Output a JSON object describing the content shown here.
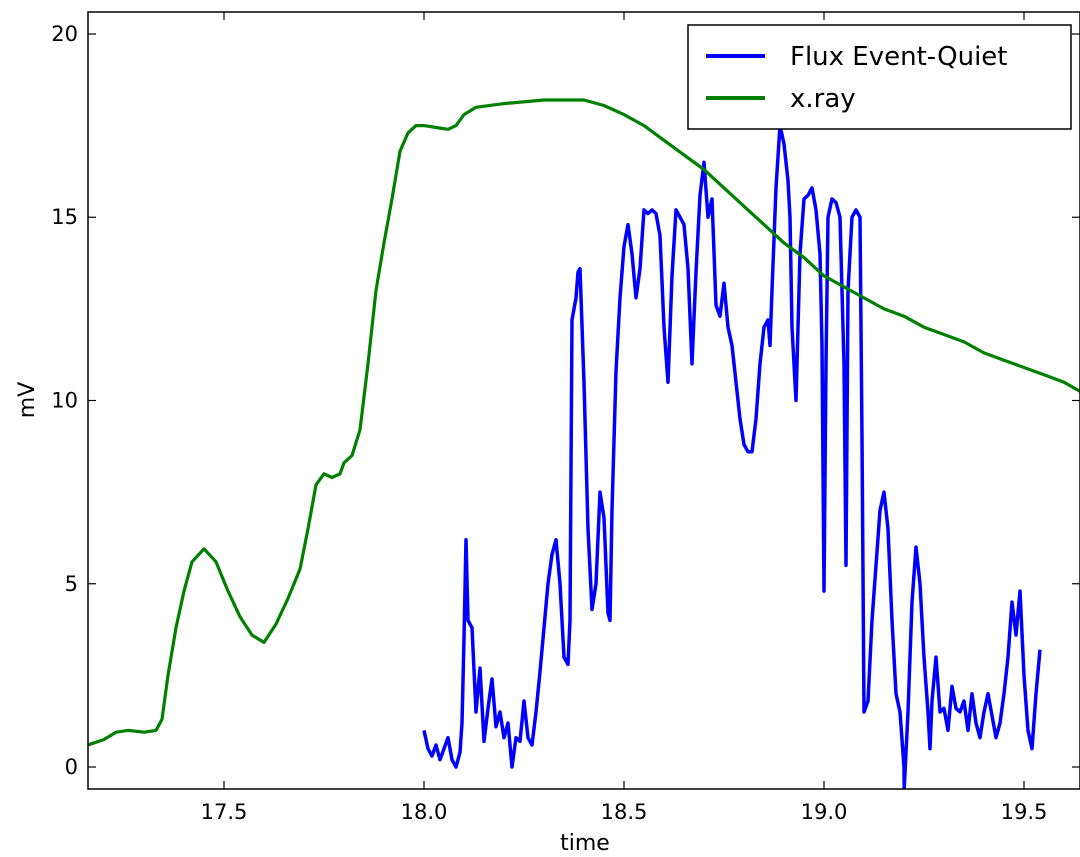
{
  "chart_data": {
    "type": "line",
    "xlabel": "time",
    "ylabel": "mV",
    "xlim": [
      17.16,
      19.64
    ],
    "ylim": [
      -0.6,
      20.6
    ],
    "x_ticks": [
      17.5,
      18.0,
      18.5,
      19.0,
      19.5
    ],
    "x_tick_labels": [
      "17.5",
      "18.0",
      "18.5",
      "19.0",
      "19.5"
    ],
    "y_ticks": [
      0,
      5,
      10,
      15,
      20
    ],
    "y_tick_labels": [
      "0",
      "5",
      "10",
      "15",
      "20"
    ],
    "grid": false,
    "legend_position": "top-right",
    "series": [
      {
        "name": "Flux Event-Quiet",
        "color": "#0000ff",
        "points": [
          [
            18.0,
            1.0
          ],
          [
            18.01,
            0.5
          ],
          [
            18.02,
            0.3
          ],
          [
            18.03,
            0.6
          ],
          [
            18.04,
            0.2
          ],
          [
            18.05,
            0.5
          ],
          [
            18.06,
            0.8
          ],
          [
            18.07,
            0.2
          ],
          [
            18.08,
            0.0
          ],
          [
            18.09,
            0.4
          ],
          [
            18.095,
            1.2
          ],
          [
            18.1,
            3.5
          ],
          [
            18.105,
            6.2
          ],
          [
            18.11,
            4.0
          ],
          [
            18.12,
            3.8
          ],
          [
            18.13,
            1.5
          ],
          [
            18.14,
            2.7
          ],
          [
            18.15,
            0.7
          ],
          [
            18.16,
            1.6
          ],
          [
            18.17,
            2.4
          ],
          [
            18.18,
            1.1
          ],
          [
            18.19,
            1.5
          ],
          [
            18.2,
            0.8
          ],
          [
            18.21,
            1.2
          ],
          [
            18.22,
            0.0
          ],
          [
            18.23,
            0.8
          ],
          [
            18.24,
            0.7
          ],
          [
            18.25,
            1.8
          ],
          [
            18.26,
            0.8
          ],
          [
            18.27,
            0.6
          ],
          [
            18.28,
            1.5
          ],
          [
            18.29,
            2.6
          ],
          [
            18.3,
            3.8
          ],
          [
            18.31,
            5.0
          ],
          [
            18.32,
            5.8
          ],
          [
            18.33,
            6.2
          ],
          [
            18.34,
            5.0
          ],
          [
            18.35,
            3.0
          ],
          [
            18.36,
            2.8
          ],
          [
            18.365,
            4.0
          ],
          [
            18.37,
            12.2
          ],
          [
            18.38,
            12.8
          ],
          [
            18.385,
            13.5
          ],
          [
            18.39,
            13.6
          ],
          [
            18.4,
            10.5
          ],
          [
            18.41,
            6.5
          ],
          [
            18.42,
            4.3
          ],
          [
            18.43,
            5.0
          ],
          [
            18.44,
            7.5
          ],
          [
            18.45,
            6.8
          ],
          [
            18.46,
            4.2
          ],
          [
            18.465,
            4.0
          ],
          [
            18.47,
            7.0
          ],
          [
            18.48,
            10.8
          ],
          [
            18.49,
            12.8
          ],
          [
            18.5,
            14.2
          ],
          [
            18.51,
            14.8
          ],
          [
            18.52,
            14.0
          ],
          [
            18.53,
            12.8
          ],
          [
            18.54,
            13.6
          ],
          [
            18.55,
            15.2
          ],
          [
            18.56,
            15.1
          ],
          [
            18.57,
            15.2
          ],
          [
            18.58,
            15.1
          ],
          [
            18.59,
            14.5
          ],
          [
            18.6,
            12.0
          ],
          [
            18.61,
            10.5
          ],
          [
            18.62,
            13.4
          ],
          [
            18.63,
            15.2
          ],
          [
            18.64,
            15.0
          ],
          [
            18.65,
            14.8
          ],
          [
            18.66,
            13.6
          ],
          [
            18.67,
            11.0
          ],
          [
            18.68,
            13.5
          ],
          [
            18.69,
            15.6
          ],
          [
            18.7,
            16.5
          ],
          [
            18.71,
            15.0
          ],
          [
            18.72,
            15.5
          ],
          [
            18.73,
            12.6
          ],
          [
            18.74,
            12.3
          ],
          [
            18.75,
            13.2
          ],
          [
            18.76,
            12.0
          ],
          [
            18.77,
            11.5
          ],
          [
            18.78,
            10.5
          ],
          [
            18.79,
            9.5
          ],
          [
            18.8,
            8.8
          ],
          [
            18.81,
            8.6
          ],
          [
            18.82,
            8.6
          ],
          [
            18.83,
            9.5
          ],
          [
            18.84,
            11.0
          ],
          [
            18.85,
            12.0
          ],
          [
            18.86,
            12.2
          ],
          [
            18.865,
            11.5
          ],
          [
            18.87,
            13.0
          ],
          [
            18.88,
            15.8
          ],
          [
            18.89,
            17.5
          ],
          [
            18.9,
            17.0
          ],
          [
            18.91,
            16.0
          ],
          [
            18.915,
            15.0
          ],
          [
            18.92,
            12.0
          ],
          [
            18.93,
            10.0
          ],
          [
            18.94,
            14.0
          ],
          [
            18.95,
            15.5
          ],
          [
            18.96,
            15.6
          ],
          [
            18.97,
            15.8
          ],
          [
            18.98,
            15.2
          ],
          [
            18.99,
            14.0
          ],
          [
            18.995,
            11.5
          ],
          [
            19.0,
            4.8
          ],
          [
            19.005,
            11.0
          ],
          [
            19.01,
            15.0
          ],
          [
            19.02,
            15.5
          ],
          [
            19.03,
            15.4
          ],
          [
            19.04,
            15.0
          ],
          [
            19.05,
            11.0
          ],
          [
            19.055,
            5.5
          ],
          [
            19.06,
            13.0
          ],
          [
            19.07,
            15.0
          ],
          [
            19.08,
            15.2
          ],
          [
            19.09,
            15.0
          ],
          [
            19.095,
            9.0
          ],
          [
            19.1,
            1.5
          ],
          [
            19.11,
            1.8
          ],
          [
            19.12,
            4.0
          ],
          [
            19.13,
            5.5
          ],
          [
            19.14,
            7.0
          ],
          [
            19.15,
            7.5
          ],
          [
            19.16,
            6.5
          ],
          [
            19.17,
            4.0
          ],
          [
            19.18,
            2.0
          ],
          [
            19.19,
            1.5
          ],
          [
            19.2,
            0.0
          ],
          [
            19.2005,
            -0.6
          ],
          [
            19.21,
            1.5
          ],
          [
            19.22,
            4.5
          ],
          [
            19.23,
            6.0
          ],
          [
            19.24,
            5.0
          ],
          [
            19.25,
            3.0
          ],
          [
            19.26,
            1.5
          ],
          [
            19.265,
            0.5
          ],
          [
            19.27,
            1.8
          ],
          [
            19.28,
            3.0
          ],
          [
            19.29,
            1.5
          ],
          [
            19.3,
            1.6
          ],
          [
            19.31,
            1.0
          ],
          [
            19.32,
            2.2
          ],
          [
            19.33,
            1.6
          ],
          [
            19.34,
            1.5
          ],
          [
            19.35,
            1.8
          ],
          [
            19.36,
            1.0
          ],
          [
            19.37,
            2.0
          ],
          [
            19.38,
            1.2
          ],
          [
            19.39,
            0.8
          ],
          [
            19.4,
            1.5
          ],
          [
            19.41,
            2.0
          ],
          [
            19.42,
            1.4
          ],
          [
            19.43,
            0.8
          ],
          [
            19.44,
            1.2
          ],
          [
            19.45,
            2.0
          ],
          [
            19.46,
            3.0
          ],
          [
            19.47,
            4.5
          ],
          [
            19.48,
            3.6
          ],
          [
            19.49,
            4.8
          ],
          [
            19.5,
            2.5
          ],
          [
            19.51,
            1.0
          ],
          [
            19.52,
            0.5
          ],
          [
            19.53,
            2.0
          ],
          [
            19.54,
            3.2
          ]
        ]
      },
      {
        "name": "x.ray",
        "color": "#008000",
        "points": [
          [
            17.16,
            0.6
          ],
          [
            17.2,
            0.75
          ],
          [
            17.23,
            0.95
          ],
          [
            17.26,
            1.0
          ],
          [
            17.3,
            0.95
          ],
          [
            17.33,
            1.0
          ],
          [
            17.345,
            1.3
          ],
          [
            17.36,
            2.5
          ],
          [
            17.38,
            3.8
          ],
          [
            17.4,
            4.8
          ],
          [
            17.42,
            5.6
          ],
          [
            17.45,
            5.95
          ],
          [
            17.48,
            5.6
          ],
          [
            17.51,
            4.8
          ],
          [
            17.54,
            4.1
          ],
          [
            17.57,
            3.6
          ],
          [
            17.6,
            3.4
          ],
          [
            17.63,
            3.9
          ],
          [
            17.66,
            4.6
          ],
          [
            17.69,
            5.4
          ],
          [
            17.71,
            6.5
          ],
          [
            17.73,
            7.7
          ],
          [
            17.75,
            8.0
          ],
          [
            17.77,
            7.9
          ],
          [
            17.79,
            8.0
          ],
          [
            17.8,
            8.3
          ],
          [
            17.82,
            8.5
          ],
          [
            17.84,
            9.2
          ],
          [
            17.86,
            11.0
          ],
          [
            17.88,
            13.0
          ],
          [
            17.9,
            14.3
          ],
          [
            17.92,
            15.5
          ],
          [
            17.94,
            16.8
          ],
          [
            17.96,
            17.3
          ],
          [
            17.98,
            17.5
          ],
          [
            18.0,
            17.5
          ],
          [
            18.03,
            17.45
          ],
          [
            18.06,
            17.4
          ],
          [
            18.08,
            17.5
          ],
          [
            18.1,
            17.8
          ],
          [
            18.13,
            18.0
          ],
          [
            18.2,
            18.1
          ],
          [
            18.3,
            18.2
          ],
          [
            18.4,
            18.2
          ],
          [
            18.45,
            18.05
          ],
          [
            18.5,
            17.8
          ],
          [
            18.55,
            17.5
          ],
          [
            18.6,
            17.1
          ],
          [
            18.65,
            16.7
          ],
          [
            18.7,
            16.3
          ],
          [
            18.75,
            15.8
          ],
          [
            18.8,
            15.3
          ],
          [
            18.85,
            14.8
          ],
          [
            18.9,
            14.3
          ],
          [
            18.95,
            13.9
          ],
          [
            19.0,
            13.4
          ],
          [
            19.05,
            13.1
          ],
          [
            19.1,
            12.8
          ],
          [
            19.15,
            12.5
          ],
          [
            19.2,
            12.3
          ],
          [
            19.25,
            12.0
          ],
          [
            19.3,
            11.8
          ],
          [
            19.35,
            11.6
          ],
          [
            19.4,
            11.3
          ],
          [
            19.45,
            11.1
          ],
          [
            19.5,
            10.9
          ],
          [
            19.55,
            10.7
          ],
          [
            19.6,
            10.5
          ],
          [
            19.64,
            10.25
          ]
        ]
      }
    ]
  }
}
